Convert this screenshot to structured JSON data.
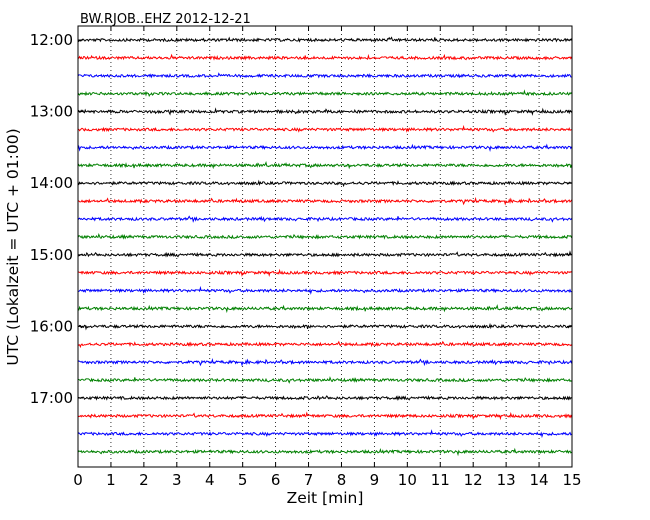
{
  "chart_data": {
    "type": "line",
    "title": "BW.RJOB..EHZ 2012-12-21",
    "xlabel": "Zeit  [min]",
    "ylabel": "UTC (Lokalzeit = UTC + 01:00)",
    "xlim": [
      0,
      15
    ],
    "x_ticks": [
      0,
      1,
      2,
      3,
      4,
      5,
      6,
      7,
      8,
      9,
      10,
      11,
      12,
      13,
      14,
      15
    ],
    "y_ticks": [
      "12:00",
      "13:00",
      "14:00",
      "15:00",
      "16:00",
      "17:00"
    ],
    "grid": "vertical dotted at each minute",
    "trace_interval_min": 15,
    "trace_colors": [
      "#000000",
      "#ff0000",
      "#0000ff",
      "#008000"
    ],
    "series": [
      {
        "start": "12:00",
        "color": "#000000"
      },
      {
        "start": "12:15",
        "color": "#ff0000"
      },
      {
        "start": "12:30",
        "color": "#0000ff"
      },
      {
        "start": "12:45",
        "color": "#008000"
      },
      {
        "start": "13:00",
        "color": "#000000"
      },
      {
        "start": "13:15",
        "color": "#ff0000"
      },
      {
        "start": "13:30",
        "color": "#0000ff"
      },
      {
        "start": "13:45",
        "color": "#008000"
      },
      {
        "start": "14:00",
        "color": "#000000"
      },
      {
        "start": "14:15",
        "color": "#ff0000"
      },
      {
        "start": "14:30",
        "color": "#0000ff"
      },
      {
        "start": "14:45",
        "color": "#008000"
      },
      {
        "start": "15:00",
        "color": "#000000"
      },
      {
        "start": "15:15",
        "color": "#ff0000"
      },
      {
        "start": "15:30",
        "color": "#0000ff"
      },
      {
        "start": "15:45",
        "color": "#008000"
      },
      {
        "start": "16:00",
        "color": "#000000"
      },
      {
        "start": "16:15",
        "color": "#ff0000"
      },
      {
        "start": "16:30",
        "color": "#0000ff"
      },
      {
        "start": "16:45",
        "color": "#008000"
      },
      {
        "start": "17:00",
        "color": "#000000"
      },
      {
        "start": "17:15",
        "color": "#ff0000"
      },
      {
        "start": "17:30",
        "color": "#0000ff"
      },
      {
        "start": "17:45",
        "color": "#008000"
      }
    ]
  }
}
